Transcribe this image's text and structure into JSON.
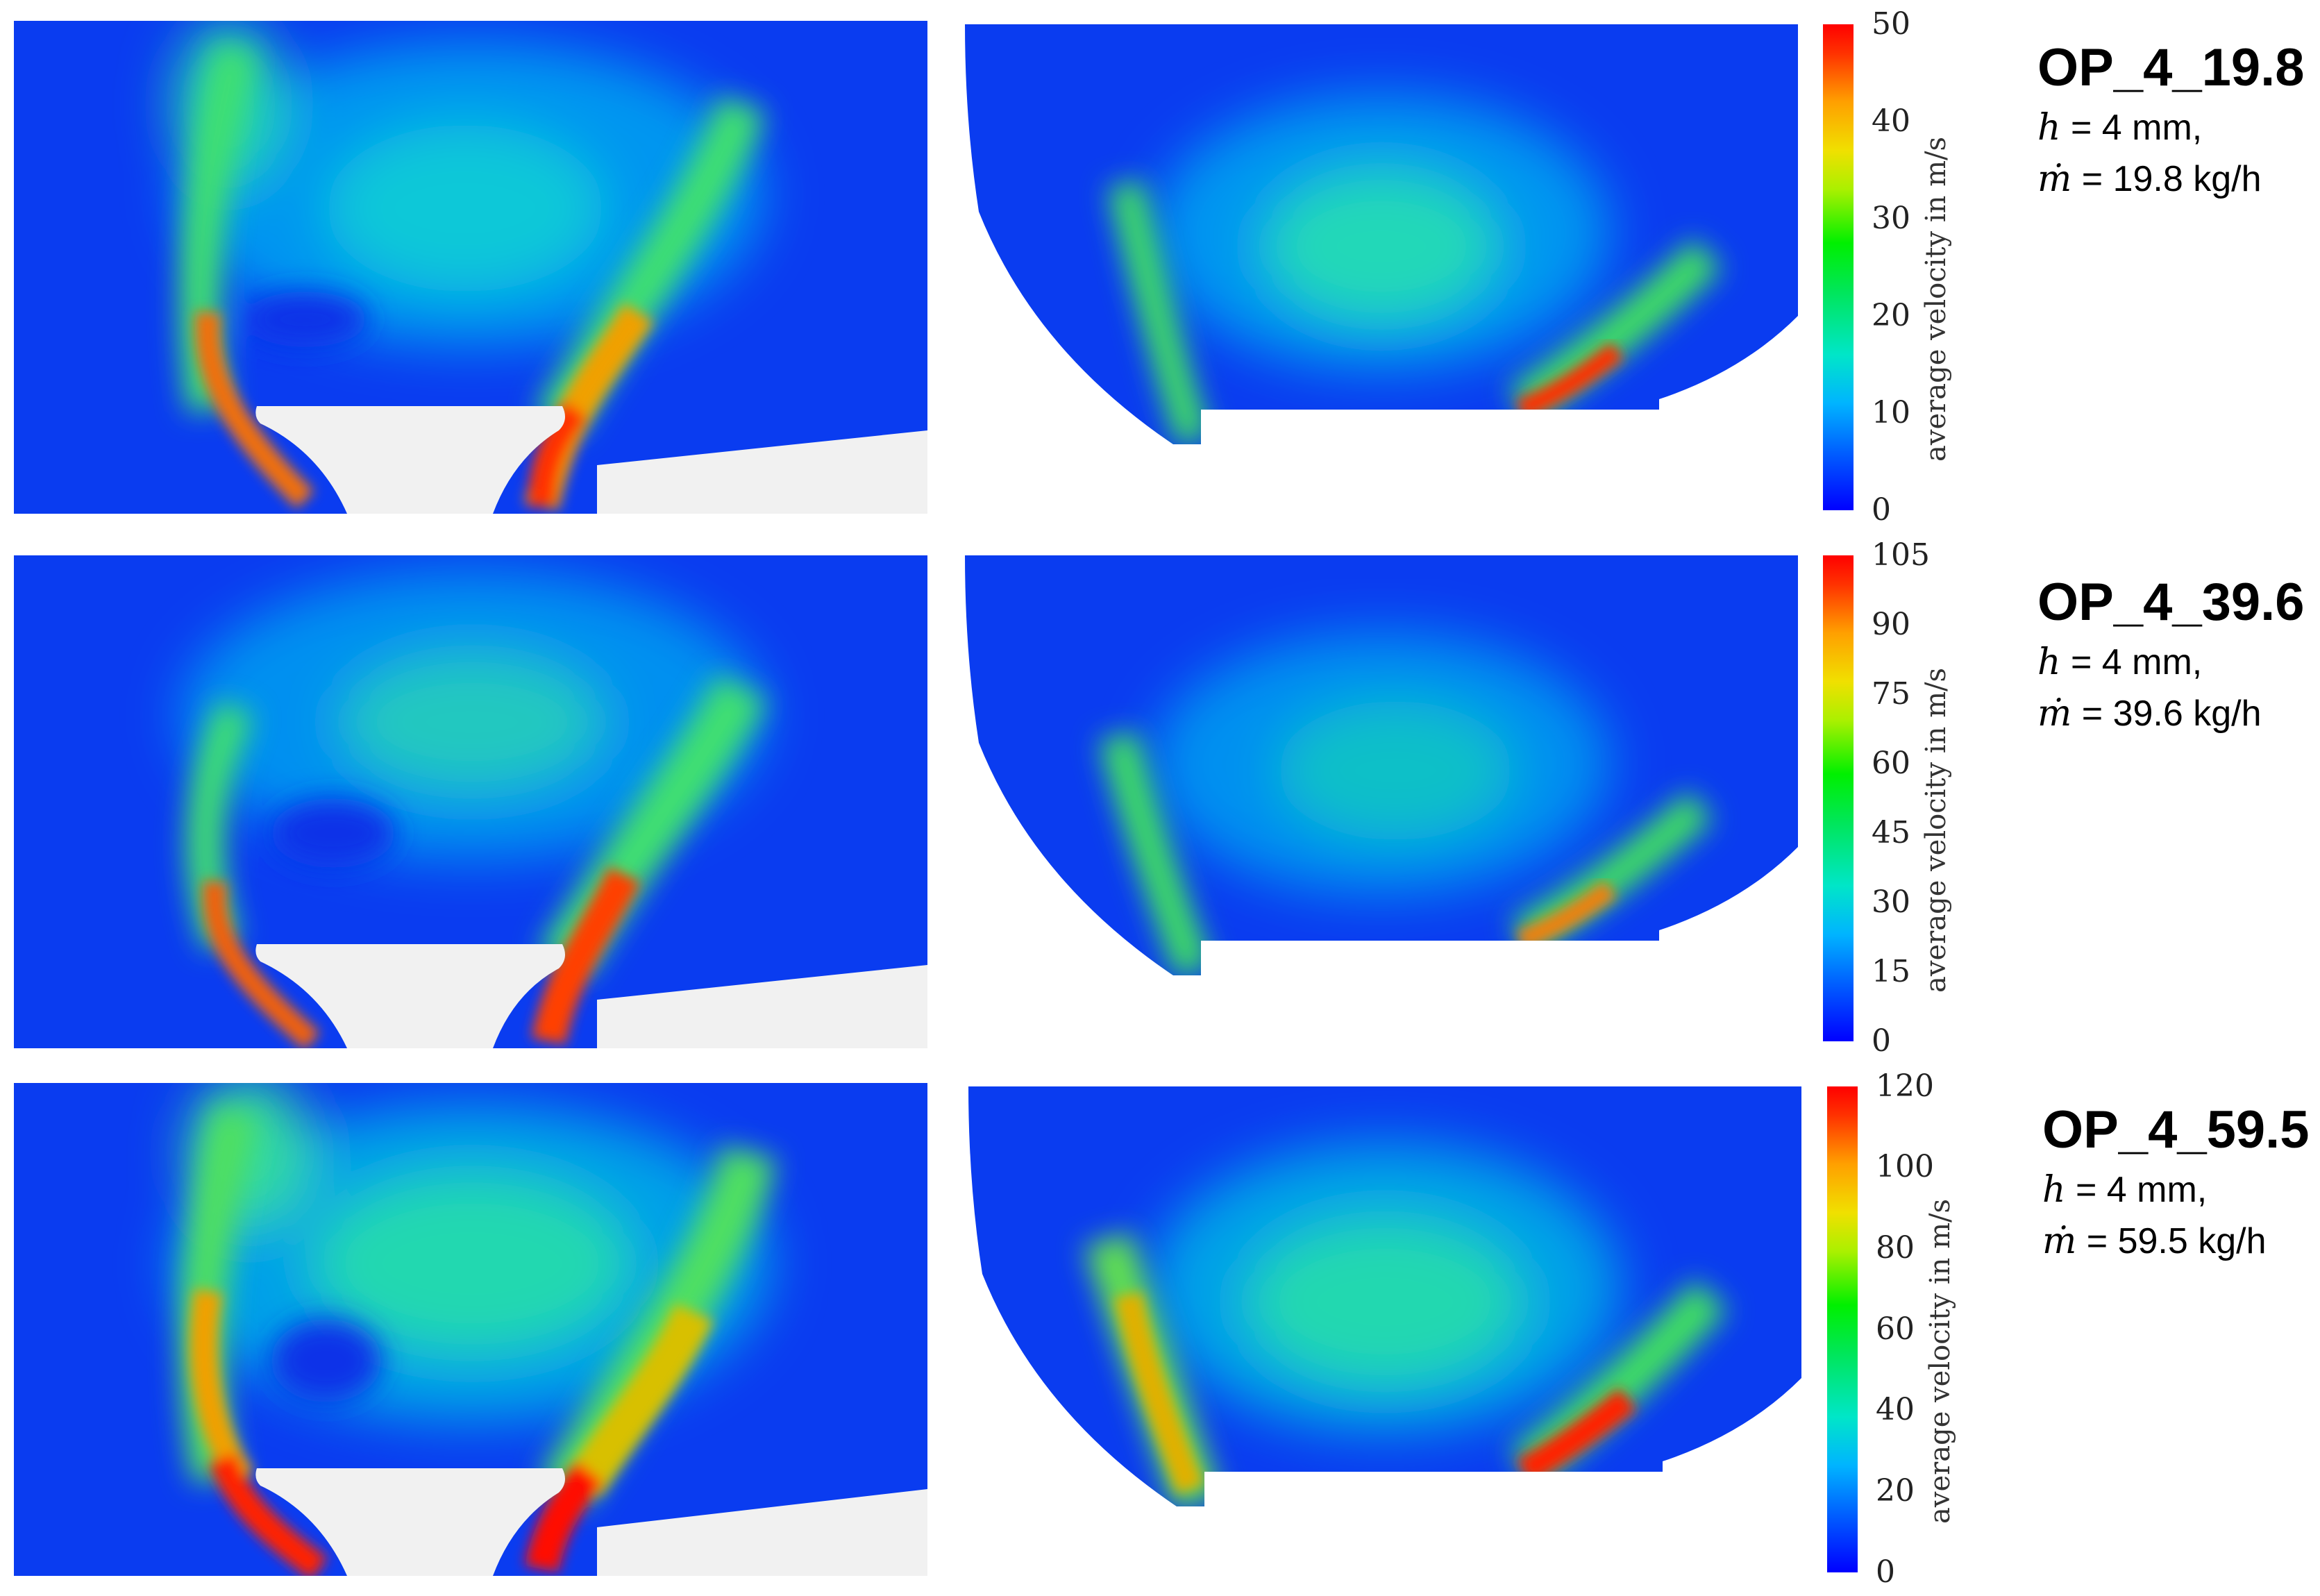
{
  "colormap": {
    "name": "jet",
    "stops": [
      "#0000ff",
      "#00b4ff",
      "#00e6c8",
      "#00f000",
      "#f0e000",
      "#ff3200"
    ]
  },
  "colorbar_label": "average velocity in m/s",
  "rows": [
    {
      "op_title": "OP_4_19.8",
      "h_symbol": "h",
      "h_value": "= 4 mm,",
      "m_symbol": "ṁ",
      "m_value": "= 19.8 kg/h",
      "scale_min": 0,
      "scale_max": 50,
      "ticks": [
        "50",
        "40",
        "30",
        "20",
        "10",
        "0"
      ]
    },
    {
      "op_title": "OP_4_39.6",
      "h_symbol": "h",
      "h_value": "= 4 mm,",
      "m_symbol": "ṁ",
      "m_value": "= 39.6 kg/h",
      "scale_min": 0,
      "scale_max": 105,
      "ticks": [
        "105",
        "90",
        "75",
        "60",
        "45",
        "30",
        "15",
        "0"
      ]
    },
    {
      "op_title": "OP_4_59.5",
      "h_symbol": "h",
      "h_value": "= 4 mm,",
      "m_symbol": "ṁ",
      "m_value": "= 59.5 kg/h",
      "scale_min": 0,
      "scale_max": 120,
      "ticks": [
        "120",
        "100",
        "80",
        "60",
        "40",
        "20",
        "0"
      ]
    }
  ]
}
